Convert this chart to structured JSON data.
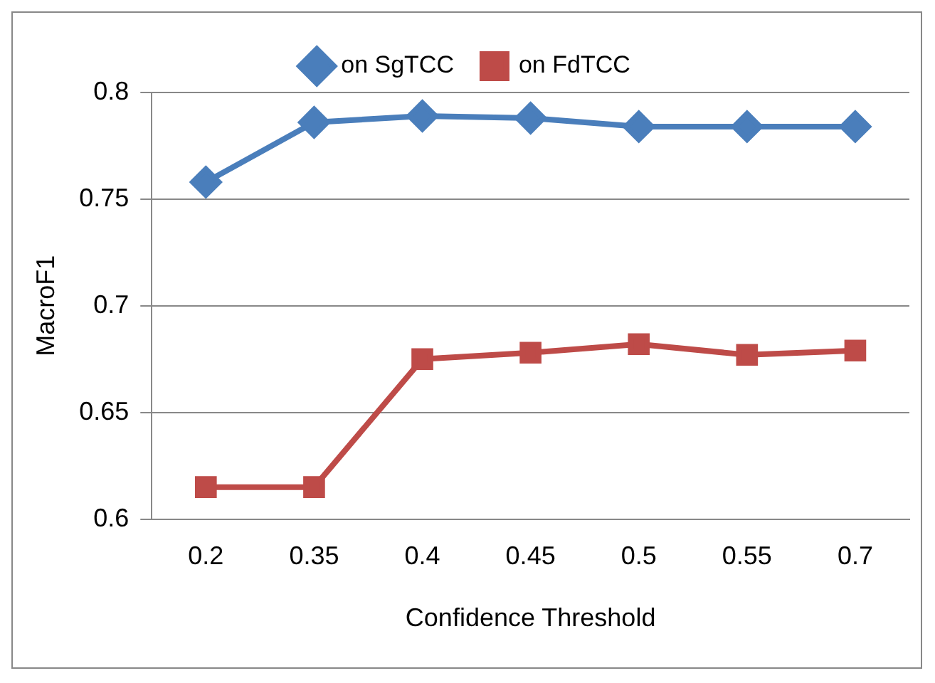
{
  "chart_data": {
    "type": "line",
    "xlabel": "Confidence Threshold",
    "ylabel": "MacroF1",
    "categories": [
      "0.2",
      "0.35",
      "0.4",
      "0.45",
      "0.5",
      "0.55",
      "0.7"
    ],
    "series": [
      {
        "name": "on SgTCC",
        "color": "#4a7ebb",
        "marker": "diamond",
        "values": [
          0.758,
          0.786,
          0.789,
          0.788,
          0.784,
          0.784,
          0.784
        ]
      },
      {
        "name": "on FdTCC",
        "color": "#be4b48",
        "marker": "square",
        "values": [
          0.615,
          0.615,
          0.675,
          0.678,
          0.682,
          0.677,
          0.679
        ]
      }
    ],
    "ylim": [
      0.6,
      0.8
    ],
    "yticks": [
      0.6,
      0.65,
      0.7,
      0.75,
      0.8
    ],
    "grid": "y",
    "legend": "top",
    "line_style": "solid"
  }
}
